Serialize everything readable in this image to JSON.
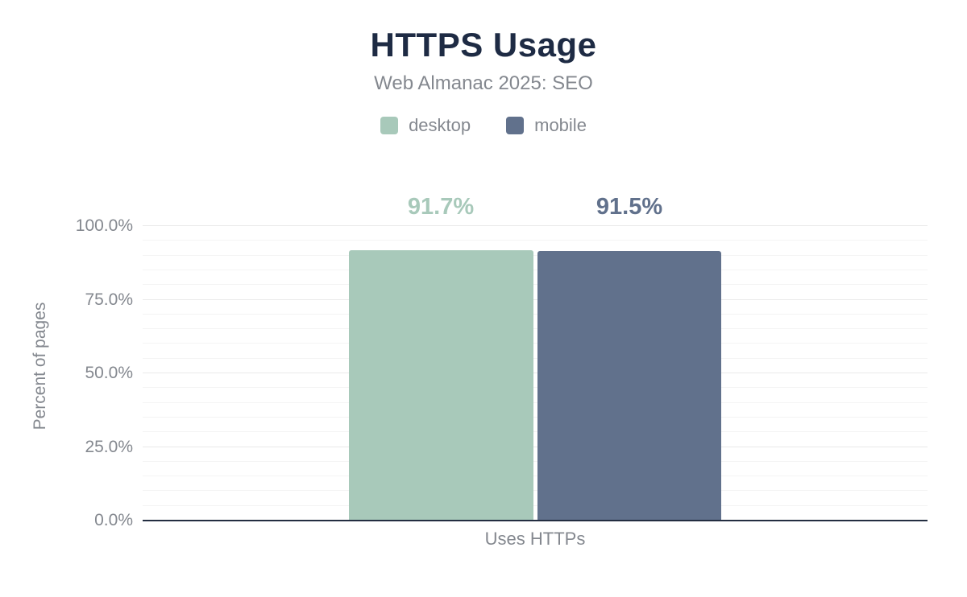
{
  "chart_data": {
    "type": "bar",
    "title": "HTTPS Usage",
    "subtitle": "Web Almanac 2025: SEO",
    "categories": [
      "Uses HTTPs"
    ],
    "series": [
      {
        "name": "desktop",
        "values": [
          91.7
        ],
        "data_label": "91.7%",
        "color": "#a8c9ba"
      },
      {
        "name": "mobile",
        "values": [
          91.5
        ],
        "data_label": "91.5%",
        "color": "#61718c"
      }
    ],
    "xlabel": "",
    "ylabel": "Percent of pages",
    "ylim": [
      0,
      100
    ],
    "yticks": [
      "0.0%",
      "25.0%",
      "50.0%",
      "75.0%",
      "100.0%"
    ],
    "grid": {
      "minor_step_percent": 5,
      "major_step_percent": 25,
      "horizontal": true
    },
    "legend_position": "top"
  },
  "colors": {
    "title_text": "#1e2b44",
    "muted_text": "#84888f",
    "axis_line": "#232e41",
    "gridline_minor": "#f4f4f4",
    "gridline_major": "#e9e9e9",
    "background": "#ffffff"
  }
}
